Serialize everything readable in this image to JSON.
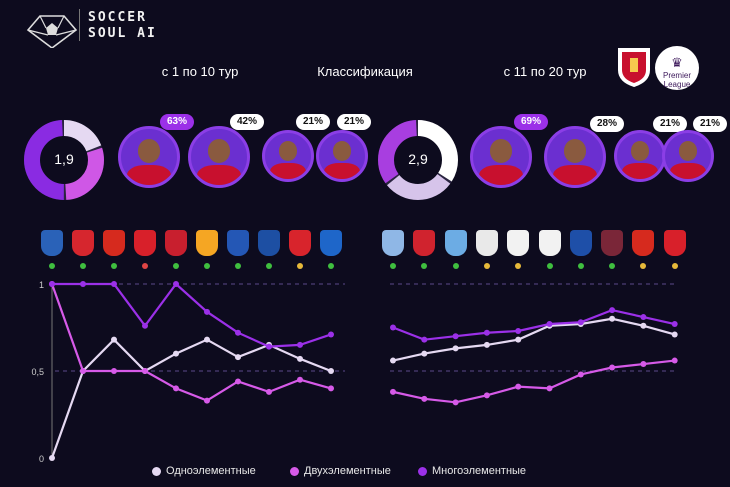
{
  "brand": {
    "name_line1": "SOCCER",
    "name_line2": "SOUL AI"
  },
  "headers": {
    "left_period": "с 1 по 10 тур",
    "center_title": "Классификация",
    "right_period": "с 11 по 20 тур"
  },
  "logos": {
    "club": "liverpool-crest",
    "league_line1": "Premier",
    "league_line2": "League"
  },
  "donuts": [
    {
      "value_label": "1,9",
      "segments": [
        0.2,
        0.3,
        0.5
      ],
      "colors": [
        "#e5d9f2",
        "#cf57e6",
        "#8a2be2"
      ]
    },
    {
      "value_label": "2,9",
      "segments": [
        0.35,
        0.3,
        0.35
      ],
      "colors": [
        "#ffffff",
        "#d6c4ea",
        "#a83ee0"
      ]
    }
  ],
  "players_left": [
    {
      "pct": "63%",
      "highlight": true
    },
    {
      "pct": "42%",
      "highlight": false
    },
    {
      "pct": "21%",
      "highlight": false
    },
    {
      "pct": "21%",
      "highlight": false
    }
  ],
  "players_right": [
    {
      "pct": "69%",
      "highlight": true
    },
    {
      "pct": "28%",
      "highlight": false
    },
    {
      "pct": "21%",
      "highlight": false
    },
    {
      "pct": "21%",
      "highlight": false
    }
  ],
  "opponents_left": [
    {
      "icon": "ipswich-crest",
      "color": "#2a62b8",
      "result": "#3fbf3f"
    },
    {
      "icon": "brentford-crest",
      "color": "#d6262e",
      "result": "#3fbf3f"
    },
    {
      "icon": "man-united-crest",
      "color": "#d62a1e",
      "result": "#3fbf3f"
    },
    {
      "icon": "nottingham-forest-crest",
      "color": "#d8202a",
      "result": "#e04545"
    },
    {
      "icon": "bournemouth-crest",
      "color": "#c81f2e",
      "result": "#3fbf3f"
    },
    {
      "icon": "wolves-crest",
      "color": "#f5a623",
      "result": "#3fbf3f"
    },
    {
      "icon": "crystal-palace-crest",
      "color": "#2457b5",
      "result": "#3fbf3f"
    },
    {
      "icon": "chelsea-crest",
      "color": "#1d4fa3",
      "result": "#3fbf3f"
    },
    {
      "icon": "arsenal-crest",
      "color": "#d8242c",
      "result": "#e6b93a"
    },
    {
      "icon": "brighton-crest",
      "color": "#1e66c9",
      "result": "#3fbf3f"
    }
  ],
  "opponents_right": [
    {
      "icon": "aston-villa-crest",
      "color": "#8fb7e6",
      "result": "#3fbf3f"
    },
    {
      "icon": "southampton-crest",
      "color": "#d0232e",
      "result": "#3fbf3f"
    },
    {
      "icon": "man-city-crest",
      "color": "#6cace4",
      "result": "#3fbf3f"
    },
    {
      "icon": "newcastle-crest",
      "color": "#e9e9e9",
      "result": "#e6b93a"
    },
    {
      "icon": "fulham-crest",
      "color": "#f2f2f2",
      "result": "#e6b93a"
    },
    {
      "icon": "tottenham-crest",
      "color": "#f2f2f2",
      "result": "#3fbf3f"
    },
    {
      "icon": "leicester-crest",
      "color": "#1e4fa8",
      "result": "#3fbf3f"
    },
    {
      "icon": "west-ham-crest",
      "color": "#7a2638",
      "result": "#3fbf3f"
    },
    {
      "icon": "man-united-crest",
      "color": "#d62a1e",
      "result": "#e6b93a"
    },
    {
      "icon": "nottingham-forest-crest",
      "color": "#d8202a",
      "result": "#e6b93a"
    }
  ],
  "chart_data": {
    "type": "line",
    "y_tick_labels": [
      "1",
      "0,5",
      "0"
    ],
    "ylim": [
      0,
      1
    ],
    "reference_lines": [
      0.5,
      1
    ],
    "colors": {
      "single": "#e5d9f2",
      "double": "#d65ae8",
      "multi": "#9b30e8"
    },
    "series": [
      {
        "name": "Одноэлементные",
        "left": [
          0,
          0.5,
          0.68,
          0.5,
          0.6,
          0.68,
          0.58,
          0.65,
          0.57,
          0.5
        ],
        "right": [
          0.56,
          0.6,
          0.63,
          0.65,
          0.68,
          0.76,
          0.77,
          0.8,
          0.76,
          0.71
        ]
      },
      {
        "name": "Двухэлементные",
        "left": [
          1,
          0.5,
          0.5,
          0.5,
          0.4,
          0.33,
          0.44,
          0.38,
          0.45,
          0.4
        ],
        "right": [
          0.38,
          0.34,
          0.32,
          0.36,
          0.41,
          0.4,
          0.48,
          0.52,
          0.54,
          0.56
        ]
      },
      {
        "name": "Многоэлементные",
        "left": [
          1,
          1,
          1,
          0.76,
          1,
          0.84,
          0.72,
          0.64,
          0.65,
          0.71
        ],
        "right": [
          0.75,
          0.68,
          0.7,
          0.72,
          0.73,
          0.77,
          0.78,
          0.85,
          0.81,
          0.77
        ]
      }
    ]
  },
  "legend": [
    {
      "label": "Одноэлементные",
      "color": "#e5d9f2"
    },
    {
      "label": "Двухэлементные",
      "color": "#d65ae8"
    },
    {
      "label": "Многоэлементные",
      "color": "#9b30e8"
    }
  ]
}
